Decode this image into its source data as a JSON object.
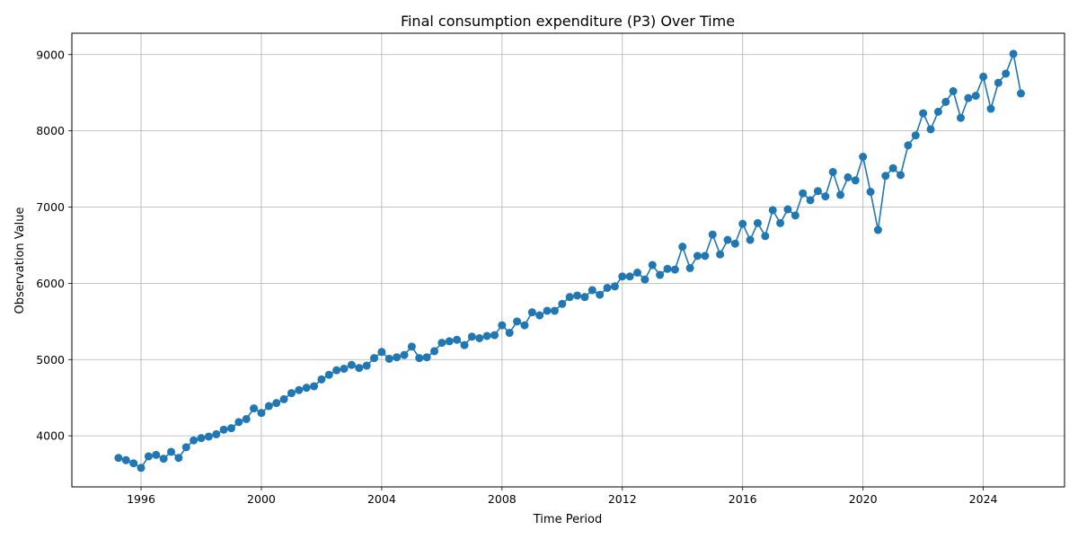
{
  "chart_data": {
    "type": "line",
    "title": "Final consumption expenditure (P3) Over Time",
    "xlabel": "Time Period",
    "ylabel": "Observation Value",
    "xlim": [
      1993.7,
      2026.7
    ],
    "ylim": [
      3330,
      9280
    ],
    "xticks": [
      1996,
      2000,
      2004,
      2008,
      2012,
      2016,
      2020,
      2024
    ],
    "yticks": [
      4000,
      5000,
      6000,
      7000,
      8000,
      9000
    ],
    "grid": true,
    "marker": "circle",
    "color": "#1f77b4",
    "series": [
      {
        "x": [
          1995.25,
          1995.5,
          1995.75,
          1996.0,
          1996.25,
          1996.5,
          1996.75,
          1997.0,
          1997.25,
          1997.5,
          1997.75,
          1998.0,
          1998.25,
          1998.5,
          1998.75,
          1999.0,
          1999.25,
          1999.5,
          1999.75,
          2000.0,
          2000.25,
          2000.5,
          2000.75,
          2001.0,
          2001.25,
          2001.5,
          2001.75,
          2002.0,
          2002.25,
          2002.5,
          2002.75,
          2003.0,
          2003.25,
          2003.5,
          2003.75,
          2004.0,
          2004.25,
          2004.5,
          2004.75,
          2005.0,
          2005.25,
          2005.5,
          2005.75,
          2006.0,
          2006.25,
          2006.5,
          2006.75,
          2007.0,
          2007.25,
          2007.5,
          2007.75,
          2008.0,
          2008.25,
          2008.5,
          2008.75,
          2009.0,
          2009.25,
          2009.5,
          2009.75,
          2010.0,
          2010.25,
          2010.5,
          2010.75,
          2011.0,
          2011.25,
          2011.5,
          2011.75,
          2012.0,
          2012.25,
          2012.5,
          2012.75,
          2013.0,
          2013.25,
          2013.5,
          2013.75,
          2014.0,
          2014.25,
          2014.5,
          2014.75,
          2015.0,
          2015.25,
          2015.5,
          2015.75,
          2016.0,
          2016.25,
          2016.5,
          2016.75,
          2017.0,
          2017.25,
          2017.5,
          2017.75,
          2018.0,
          2018.25,
          2018.5,
          2018.75,
          2019.0,
          2019.25,
          2019.5,
          2019.75,
          2020.0,
          2020.25,
          2020.5,
          2020.75,
          2021.0,
          2021.25,
          2021.5,
          2021.75,
          2022.0,
          2022.25,
          2022.5,
          2022.75,
          2023.0,
          2023.25,
          2023.5,
          2023.75,
          2024.0,
          2024.25,
          2024.5,
          2024.75,
          2025.0,
          2025.25
        ],
        "y": [
          3710,
          3680,
          3640,
          3580,
          3730,
          3750,
          3700,
          3790,
          3710,
          3850,
          3940,
          3970,
          3990,
          4020,
          4080,
          4100,
          4180,
          4220,
          4360,
          4300,
          4390,
          4430,
          4480,
          4560,
          4600,
          4630,
          4650,
          4740,
          4800,
          4860,
          4880,
          4930,
          4890,
          4920,
          5020,
          5100,
          5010,
          5030,
          5060,
          5170,
          5020,
          5030,
          5110,
          5220,
          5240,
          5260,
          5190,
          5300,
          5280,
          5310,
          5320,
          5450,
          5350,
          5500,
          5450,
          5620,
          5580,
          5640,
          5640,
          5730,
          5820,
          5840,
          5820,
          5910,
          5850,
          5940,
          5960,
          6090,
          6090,
          6140,
          6050,
          6240,
          6110,
          6190,
          6180,
          6480,
          6200,
          6360,
          6360,
          6640,
          6380,
          6570,
          6520,
          6780,
          6570,
          6790,
          6620,
          6960,
          6790,
          6970,
          6890,
          7180,
          7090,
          7210,
          7140,
          7460,
          7160,
          7390,
          7350,
          7660,
          7200,
          6700,
          7410,
          7510,
          7420,
          7810,
          7940,
          8230,
          8020,
          8250,
          8380,
          8520,
          8170,
          8430,
          8460,
          8710,
          8290,
          8630,
          8750,
          9010,
          8490
        ]
      }
    ]
  }
}
